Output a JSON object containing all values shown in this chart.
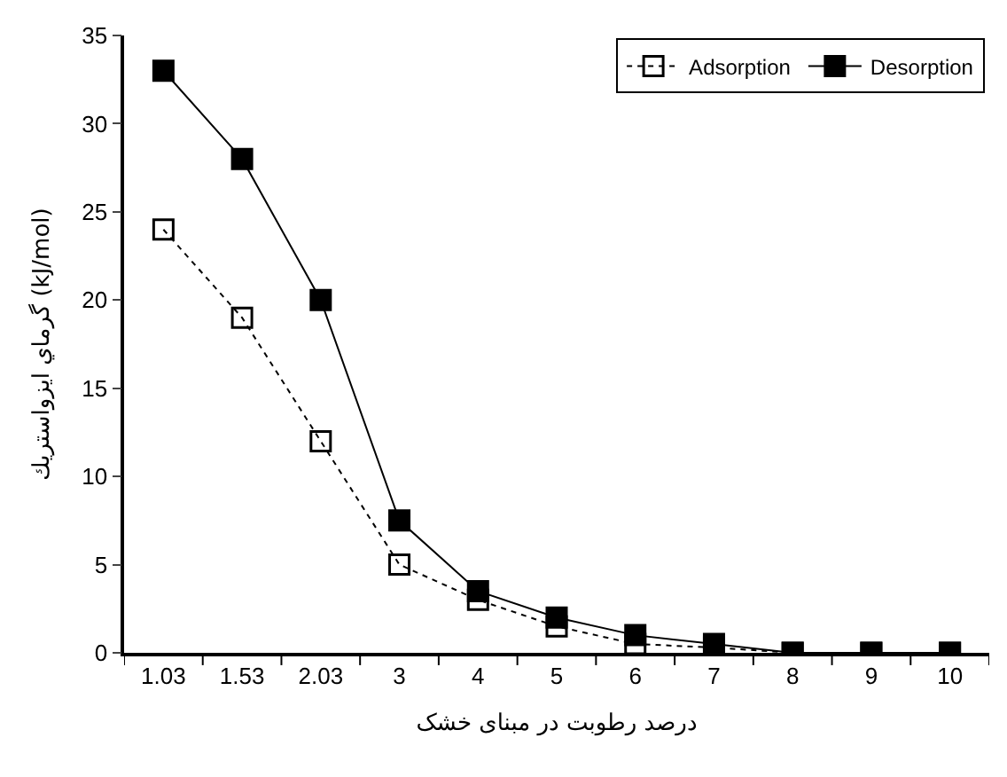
{
  "chart_data": {
    "type": "line",
    "xlabel": "درصد رطوبت در مبنای خشک",
    "ylabel": "گرماي ايزواستريك (kJ/mol)",
    "categories": [
      "1.03",
      "1.53",
      "2.03",
      "3",
      "4",
      "5",
      "6",
      "7",
      "8",
      "9",
      "10"
    ],
    "ylim": [
      0,
      35
    ],
    "yticks": [
      0,
      5,
      10,
      15,
      20,
      25,
      30,
      35
    ],
    "legend": "top right",
    "marker": "square",
    "series": [
      {
        "name": "Adsorption",
        "color": "#000000",
        "line_style": "dotted",
        "values": [
          24,
          19,
          12,
          5,
          3,
          1.5,
          0.5,
          0.3,
          0,
          0,
          0
        ]
      },
      {
        "name": "Desorption",
        "color": "#000000",
        "line_style": "solid",
        "values": [
          33,
          28,
          20,
          7.5,
          3.5,
          2,
          1,
          0.5,
          0,
          0,
          0
        ]
      }
    ]
  }
}
